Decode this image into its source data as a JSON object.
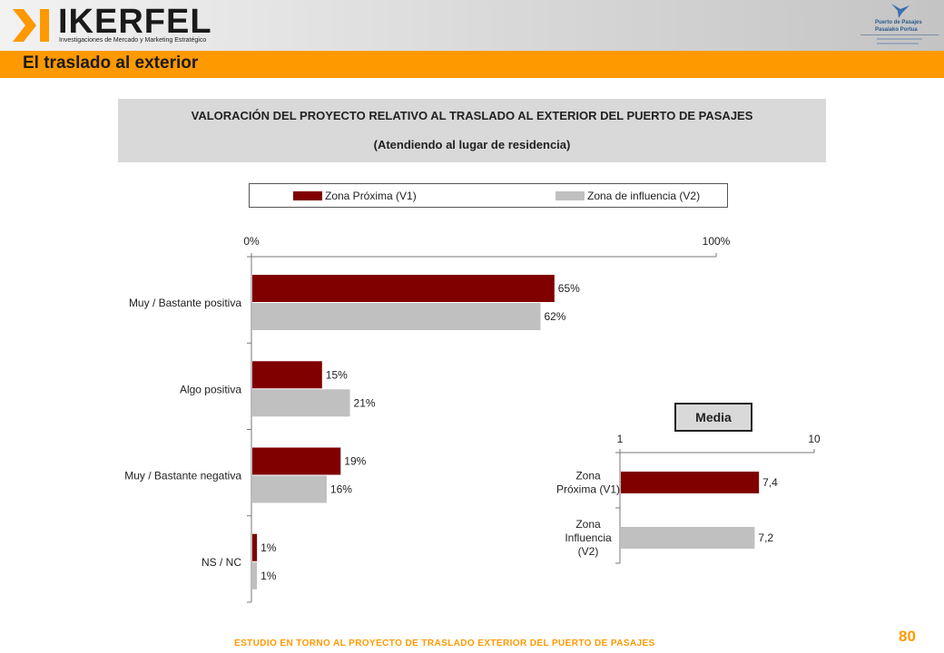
{
  "header": {
    "logo_text": "IKERFEL",
    "logo_subtitle": "Investigaciones de Mercado y Marketing Estratégico",
    "port_logo_line1": "Puerto de Pasajes",
    "port_logo_line2": "Pasaiako Portua"
  },
  "section_title": "El traslado al exterior",
  "title_box": {
    "line1": "VALORACIÓN DEL PROYECTO RELATIVO AL TRASLADO AL EXTERIOR DEL PUERTO DE PASAJES",
    "line2": "(Atendiendo al lugar de residencia)"
  },
  "legend": {
    "items": [
      {
        "label": "Zona Próxima (V1)",
        "color": "#800000"
      },
      {
        "label": "Zona de influencia (V2)",
        "color": "#c0c0c0"
      }
    ]
  },
  "media_label": "Media",
  "chart_data": [
    {
      "type": "bar",
      "orientation": "horizontal",
      "categories": [
        "Muy / Bastante positiva",
        "Algo positiva",
        "Muy / Bastante negativa",
        "NS / NC"
      ],
      "series": [
        {
          "name": "Zona Próxima (V1)",
          "values": [
            65,
            15,
            19,
            1
          ],
          "labels": [
            "65%",
            "15%",
            "19%",
            "1%"
          ],
          "color": "#800000"
        },
        {
          "name": "Zona de influencia (V2)",
          "values": [
            62,
            21,
            16,
            1
          ],
          "labels": [
            "62%",
            "21%",
            "16%",
            "1%"
          ],
          "color": "#c0c0c0"
        }
      ],
      "xlim": [
        0,
        100
      ],
      "tick_labels": [
        "0%",
        "100%"
      ],
      "legend": "top"
    },
    {
      "type": "bar",
      "orientation": "horizontal",
      "title": "Media",
      "categories": [
        "Zona Próxima (V1)",
        "Zona Influencia (V2)"
      ],
      "category_lines": [
        [
          "Zona",
          "Próxima (V1)"
        ],
        [
          "Zona",
          "Influencia",
          "(V2)"
        ]
      ],
      "values": [
        7.4,
        7.2
      ],
      "value_labels": [
        "7,4",
        "7,2"
      ],
      "colors": [
        "#800000",
        "#c0c0c0"
      ],
      "xlim": [
        1,
        10
      ],
      "tick_labels": [
        "1",
        "10"
      ]
    }
  ],
  "footer": {
    "text": "ESTUDIO EN TORNO AL PROYECTO DE TRASLADO EXTERIOR DEL PUERTO DE PASAJES",
    "page_number": "80"
  }
}
